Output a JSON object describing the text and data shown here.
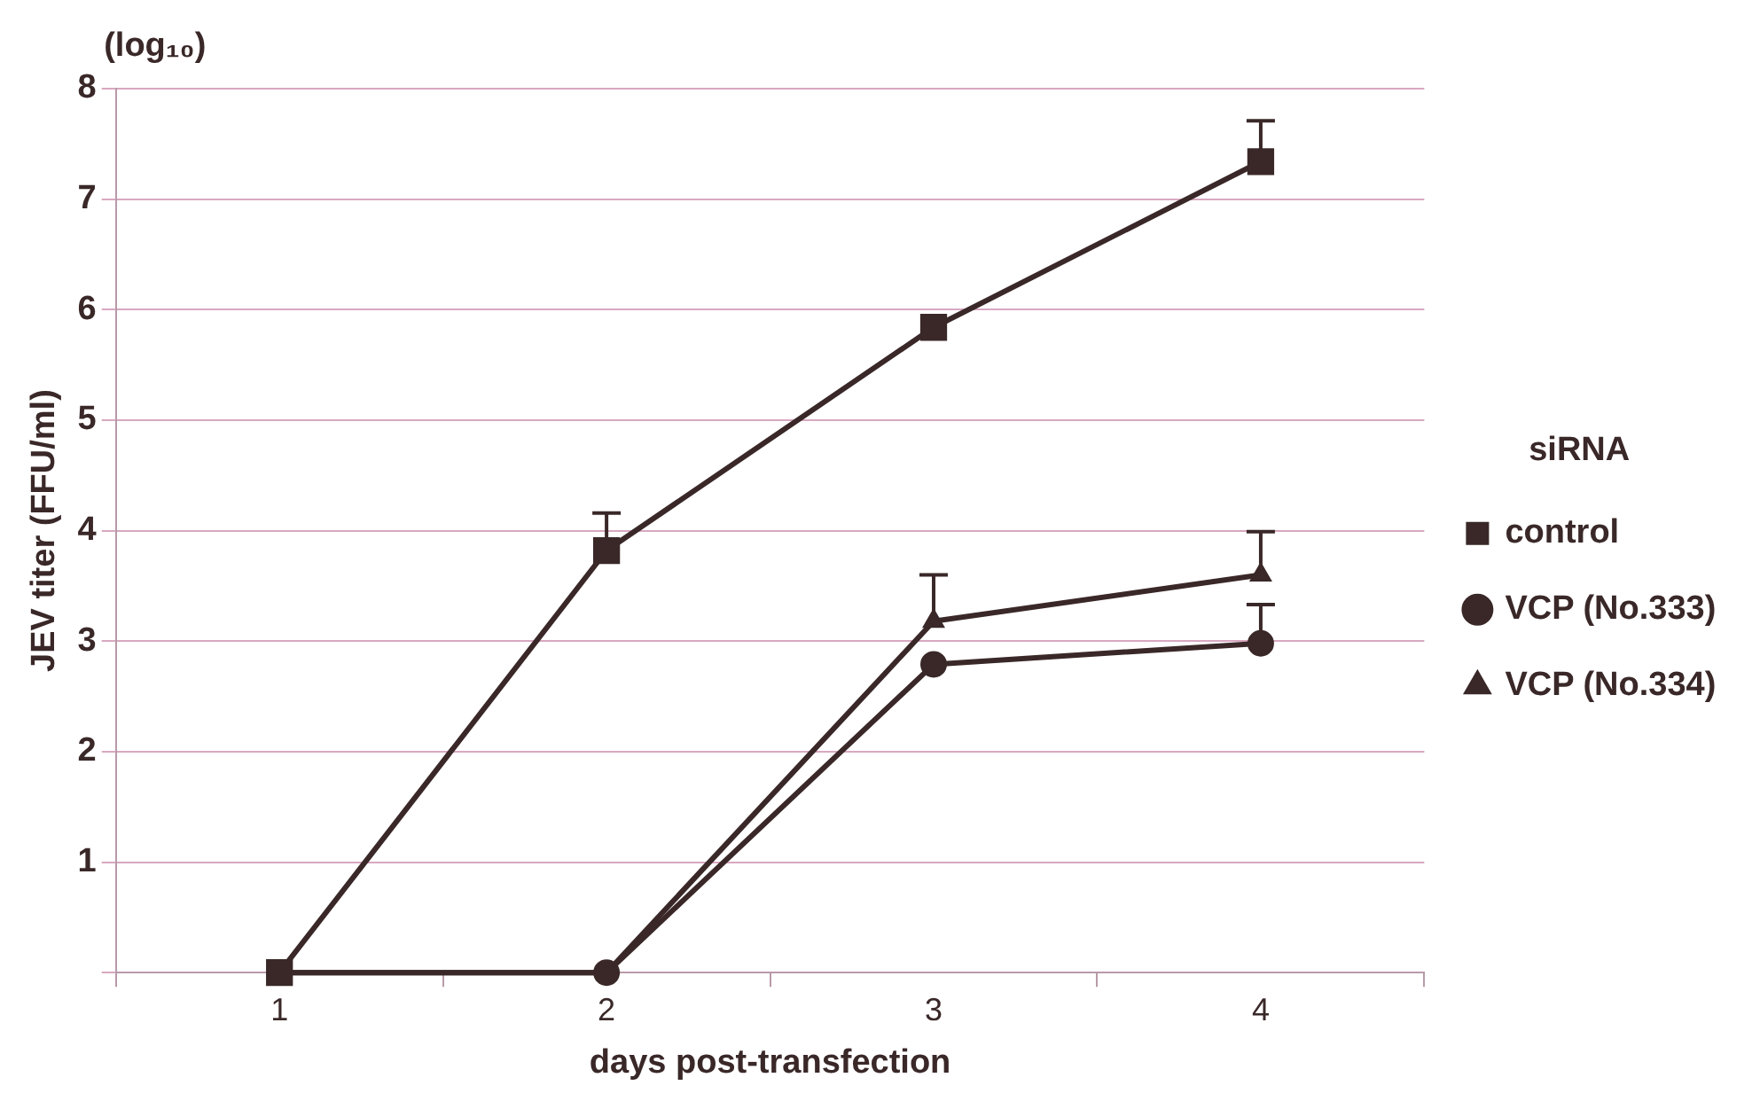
{
  "chart_data": {
    "type": "line",
    "xlabel": "days post-transfection",
    "ylabel": "JEV titer (FFU/ml)",
    "annotations": [
      "(log₁₀)"
    ],
    "legend_title": "siRNA",
    "legend": "right",
    "grid": "y",
    "line_style": "solid",
    "categories": [
      "1",
      "2",
      "3",
      "4"
    ],
    "ylim": [
      0,
      8
    ],
    "yticks": [
      {
        "value": 0,
        "label": null
      },
      1,
      2,
      3,
      4,
      5,
      6,
      7,
      8
    ],
    "series": [
      {
        "name": "control",
        "color": "#3a2828",
        "marker": "square",
        "values": [
          0,
          3.82,
          5.84,
          7.34
        ],
        "errors": [
          null,
          [
            3.82,
            4.16
          ],
          null,
          [
            7.34,
            7.71
          ]
        ]
      },
      {
        "name": "VCP (No.333)",
        "color": "#3a2828",
        "marker": "circle",
        "values": [
          0,
          0,
          2.79,
          2.98
        ],
        "errors": [
          null,
          null,
          null,
          [
            2.98,
            3.33
          ]
        ]
      },
      {
        "name": "VCP (No.334)",
        "color": "#3a2828",
        "marker": "triangle",
        "values": [
          0,
          0,
          3.18,
          3.6
        ],
        "errors": [
          null,
          null,
          [
            3.18,
            3.6
          ],
          [
            3.6,
            3.99
          ]
        ]
      }
    ]
  }
}
